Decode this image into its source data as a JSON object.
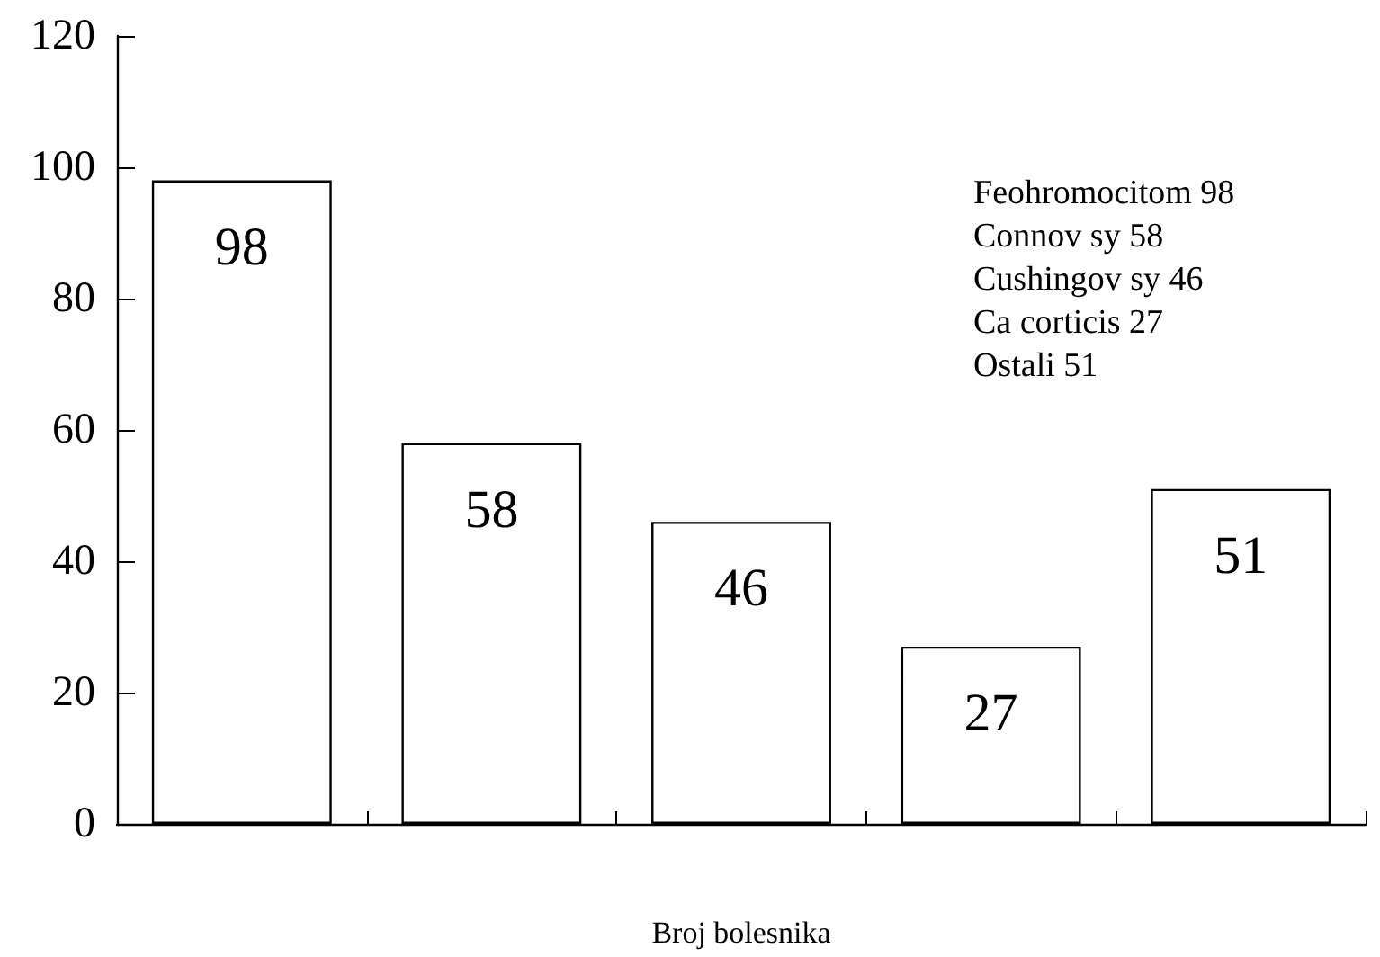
{
  "chart_data": {
    "type": "bar",
    "xlabel": "Broj bolesnika",
    "categories": [
      null,
      null,
      null,
      null,
      null
    ],
    "values": [
      98,
      58,
      46,
      27,
      51
    ],
    "color": "#ffffff",
    "ylim": [
      0,
      120
    ],
    "yticks": [
      0,
      20,
      40,
      60,
      80,
      100,
      120
    ],
    "grid": false,
    "data_labels": true,
    "annotations": [
      "Feohromocitom 98",
      "Connov sy 58",
      "Cushingov sy 46",
      "Ca corticis 27",
      "Ostali 51"
    ]
  }
}
